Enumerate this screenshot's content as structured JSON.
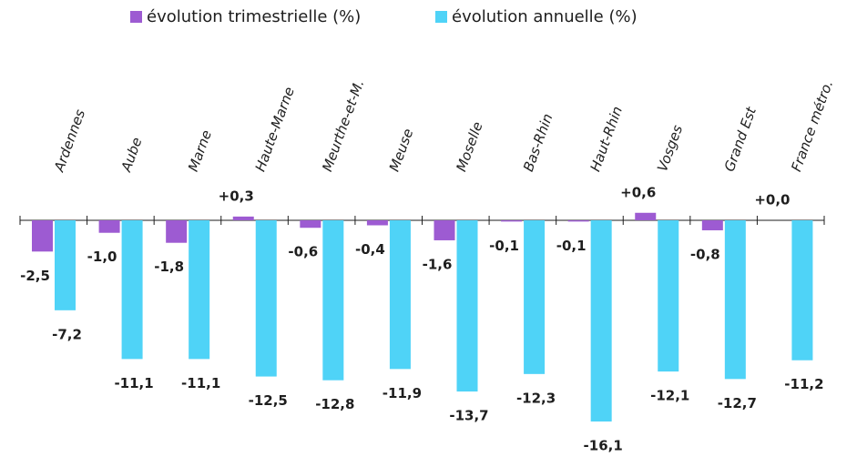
{
  "chart_data": {
    "type": "bar",
    "categories": [
      "Ardennes",
      "Aube",
      "Marne",
      "Haute-Marne",
      "Meurthe-et-M.",
      "Meuse",
      "Moselle",
      "Bas-Rhin",
      "Haut-Rhin",
      "Vosges",
      "Grand Est",
      "France métro."
    ],
    "series": [
      {
        "name": "évolution trimestrielle (%)",
        "color": "#9d5bd2",
        "values": [
          -2.5,
          -1.0,
          -1.8,
          0.3,
          -0.6,
          -0.4,
          -1.6,
          -0.1,
          -0.1,
          0.6,
          -0.8,
          0.0
        ],
        "value_labels": [
          "-2,5",
          "-1,0",
          "-1,8",
          "+0,3",
          "-0,6",
          "-0,4",
          "-1,6",
          "-0,1",
          "-0,1",
          "+0,6",
          "-0,8",
          "+0,0"
        ]
      },
      {
        "name": "évolution annuelle (%)",
        "color": "#4fd3f7",
        "values": [
          -7.2,
          -11.1,
          -11.1,
          -12.5,
          -12.8,
          -11.9,
          -13.7,
          -12.3,
          -16.1,
          -12.1,
          -12.7,
          -11.2
        ],
        "value_labels": [
          "-7,2",
          "-11,1",
          "-11,1",
          "-12,5",
          "-12,8",
          "-11,9",
          "-13,7",
          "-12,3",
          "-16,1",
          "-12,1",
          "-12,7",
          "-11,2"
        ]
      }
    ]
  }
}
